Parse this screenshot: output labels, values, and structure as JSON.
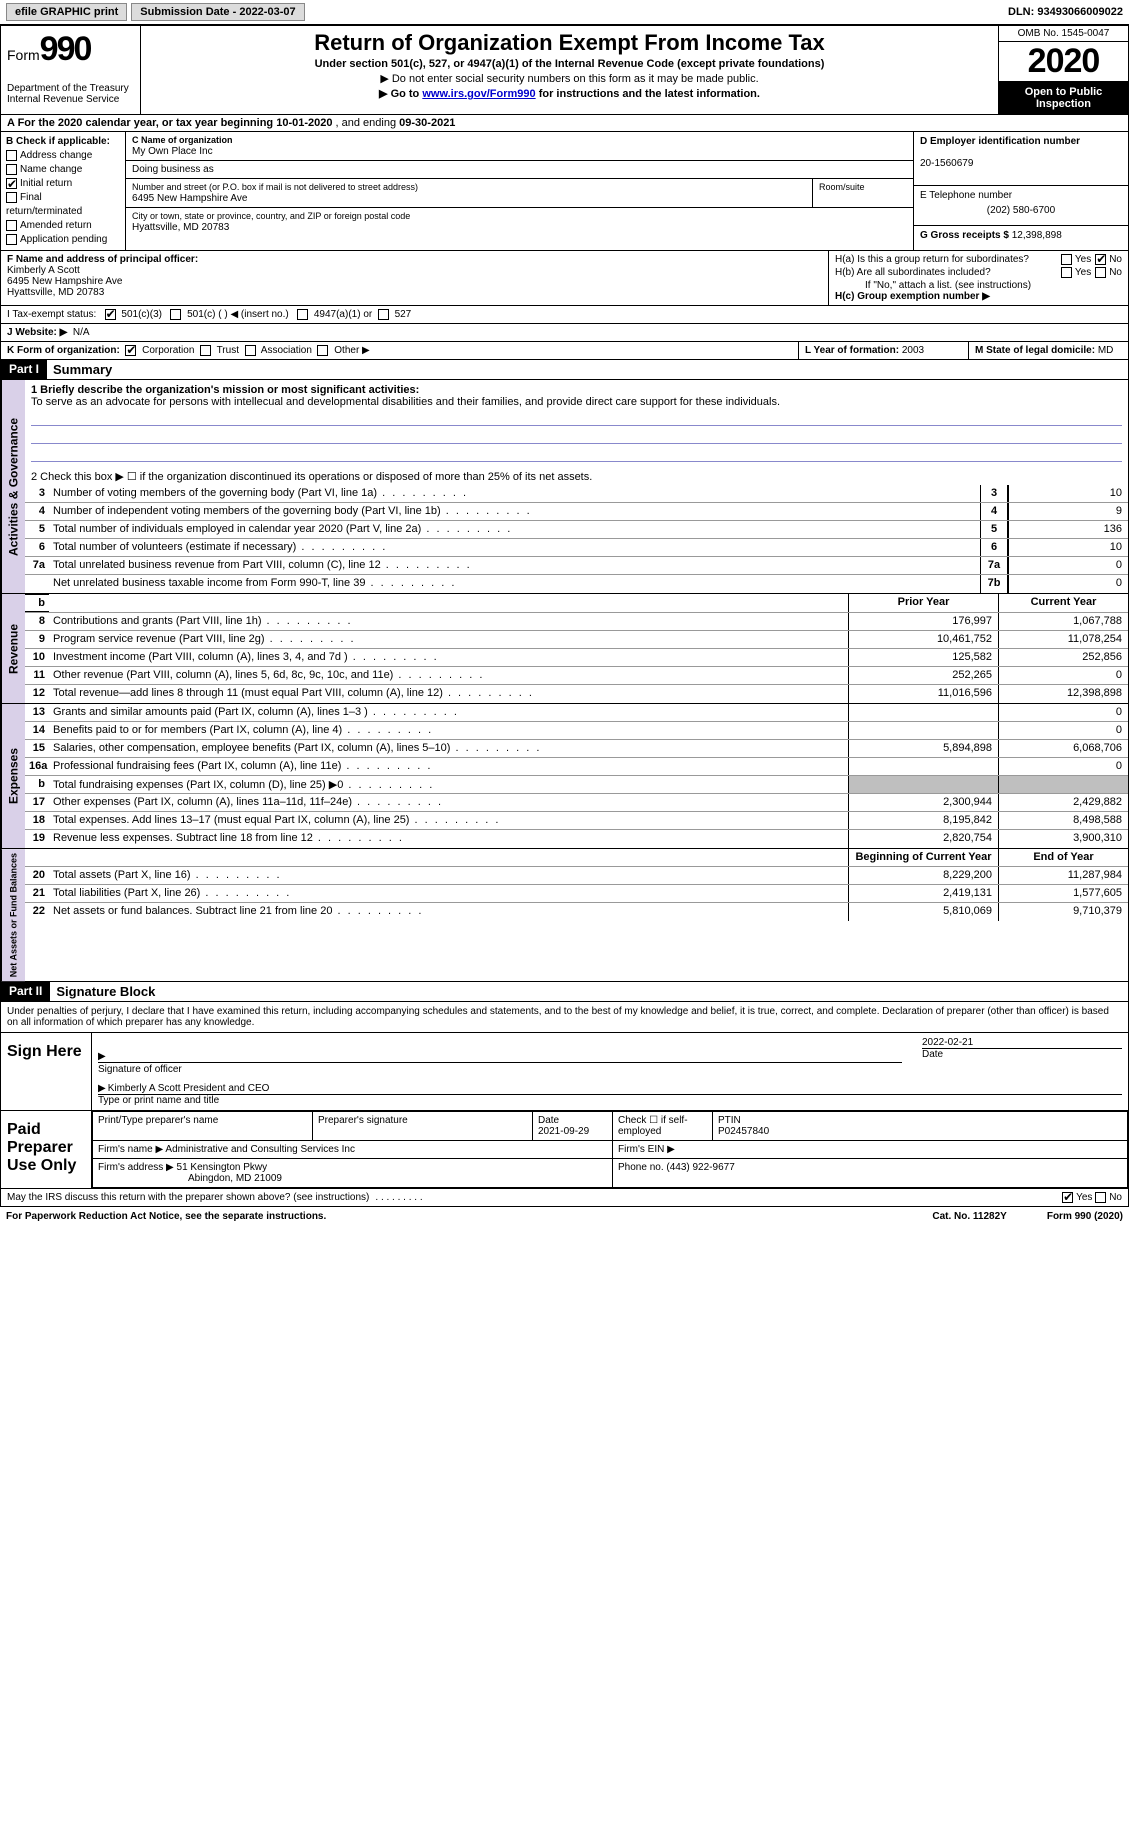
{
  "topbar": {
    "efile": "efile GRAPHIC print",
    "sub_label": "Submission Date - ",
    "sub_date": "2022-03-07",
    "dln_label": "DLN: ",
    "dln": "93493066009022"
  },
  "header": {
    "form_prefix": "Form",
    "form_no": "990",
    "dept1": "Department of the Treasury",
    "dept2": "Internal Revenue Service",
    "title": "Return of Organization Exempt From Income Tax",
    "subtitle": "Under section 501(c), 527, or 4947(a)(1) of the Internal Revenue Code (except private foundations)",
    "note1": "▶ Do not enter social security numbers on this form as it may be made public.",
    "note2_pre": "▶ Go to ",
    "note2_link": "www.irs.gov/Form990",
    "note2_post": " for instructions and the latest information.",
    "omb": "OMB No. 1545-0047",
    "year": "2020",
    "inspect": "Open to Public Inspection"
  },
  "lineA": {
    "text_pre": "A For the 2020 calendar year, or tax year beginning ",
    "begin": "10-01-2020",
    "mid": "  , and ending ",
    "end": "09-30-2021"
  },
  "colB": {
    "label": "B Check if applicable:",
    "items": [
      "Address change",
      "Name change",
      "Initial return",
      "Final return/terminated",
      "Amended return",
      "Application pending"
    ],
    "checked_index": 2
  },
  "colC": {
    "name_lbl": "C Name of organization",
    "name": "My Own Place Inc",
    "dba_lbl": "Doing business as",
    "dba": "",
    "addr_lbl": "Number and street (or P.O. box if mail is not delivered to street address)",
    "addr": "6495 New Hampshire Ave",
    "room_lbl": "Room/suite",
    "city_lbl": "City or town, state or province, country, and ZIP or foreign postal code",
    "city": "Hyattsville, MD  20783"
  },
  "colD": {
    "ein_lbl": "D Employer identification number",
    "ein": "20-1560679",
    "phone_lbl": "E Telephone number",
    "phone": "(202) 580-6700",
    "gross_lbl": "G Gross receipts $ ",
    "gross": "12,398,898"
  },
  "blockF": {
    "label": "F  Name and address of principal officer:",
    "name": "Kimberly A Scott",
    "addr1": "6495 New Hampshire Ave",
    "addr2": "Hyattsville, MD  20783"
  },
  "blockH": {
    "ha_lbl": "H(a)  Is this a group return for subordinates?",
    "ha_yes": "Yes",
    "ha_no": "No",
    "hb_lbl": "H(b)  Are all subordinates included?",
    "hb_yes": "Yes",
    "hb_no": "No",
    "hb_note": "If \"No,\" attach a list. (see instructions)",
    "hc_lbl": "H(c)  Group exemption number ▶"
  },
  "lineI": {
    "label": "I    Tax-exempt status:",
    "o1": "501(c)(3)",
    "o2": "501(c) (  ) ◀ (insert no.)",
    "o3": "4947(a)(1) or",
    "o4": "527"
  },
  "lineJ": {
    "label": "J   Website: ▶",
    "val": "N/A"
  },
  "lineK": {
    "label": "K Form of organization:",
    "o1": "Corporation",
    "o2": "Trust",
    "o3": "Association",
    "o4": "Other ▶"
  },
  "lineL": {
    "label": "L Year of formation: ",
    "val": "2003"
  },
  "lineM": {
    "label": "M State of legal domicile: ",
    "val": "MD"
  },
  "part1": {
    "tag": "Part I",
    "title": "Summary"
  },
  "summary": {
    "mission_lbl": "1  Briefly describe the organization's mission or most significant activities:",
    "mission": "To serve as an advocate for persons with intellecual and developmental disabilities and their families, and provide direct care support for these individuals.",
    "line2": "2    Check this box ▶ ☐  if the organization discontinued its operations or disposed of more than 25% of its net assets.",
    "rows_gov": [
      {
        "n": "3",
        "d": "Number of voting members of the governing body (Part VI, line 1a)",
        "b": "3",
        "v": "10"
      },
      {
        "n": "4",
        "d": "Number of independent voting members of the governing body (Part VI, line 1b)",
        "b": "4",
        "v": "9"
      },
      {
        "n": "5",
        "d": "Total number of individuals employed in calendar year 2020 (Part V, line 2a)",
        "b": "5",
        "v": "136"
      },
      {
        "n": "6",
        "d": "Total number of volunteers (estimate if necessary)",
        "b": "6",
        "v": "10"
      },
      {
        "n": "7a",
        "d": "Total unrelated business revenue from Part VIII, column (C), line 12",
        "b": "7a",
        "v": "0"
      },
      {
        "n": "",
        "d": "Net unrelated business taxable income from Form 990-T, line 39",
        "b": "7b",
        "v": "0"
      }
    ],
    "prior_hdr": "Prior Year",
    "cur_hdr": "Current Year",
    "rows_rev": [
      {
        "n": "8",
        "d": "Contributions and grants (Part VIII, line 1h)",
        "p": "176,997",
        "c": "1,067,788"
      },
      {
        "n": "9",
        "d": "Program service revenue (Part VIII, line 2g)",
        "p": "10,461,752",
        "c": "11,078,254"
      },
      {
        "n": "10",
        "d": "Investment income (Part VIII, column (A), lines 3, 4, and 7d )",
        "p": "125,582",
        "c": "252,856"
      },
      {
        "n": "11",
        "d": "Other revenue (Part VIII, column (A), lines 5, 6d, 8c, 9c, 10c, and 11e)",
        "p": "252,265",
        "c": "0"
      },
      {
        "n": "12",
        "d": "Total revenue—add lines 8 through 11 (must equal Part VIII, column (A), line 12)",
        "p": "11,016,596",
        "c": "12,398,898"
      }
    ],
    "rows_exp": [
      {
        "n": "13",
        "d": "Grants and similar amounts paid (Part IX, column (A), lines 1–3 )",
        "p": "",
        "c": "0"
      },
      {
        "n": "14",
        "d": "Benefits paid to or for members (Part IX, column (A), line 4)",
        "p": "",
        "c": "0"
      },
      {
        "n": "15",
        "d": "Salaries, other compensation, employee benefits (Part IX, column (A), lines 5–10)",
        "p": "5,894,898",
        "c": "6,068,706"
      },
      {
        "n": "16a",
        "d": "Professional fundraising fees (Part IX, column (A), line 11e)",
        "p": "",
        "c": "0"
      },
      {
        "n": "b",
        "d": "Total fundraising expenses (Part IX, column (D), line 25) ▶0",
        "p": "GREY",
        "c": "GREY"
      },
      {
        "n": "17",
        "d": "Other expenses (Part IX, column (A), lines 11a–11d, 11f–24e)",
        "p": "2,300,944",
        "c": "2,429,882"
      },
      {
        "n": "18",
        "d": "Total expenses. Add lines 13–17 (must equal Part IX, column (A), line 25)",
        "p": "8,195,842",
        "c": "8,498,588"
      },
      {
        "n": "19",
        "d": "Revenue less expenses. Subtract line 18 from line 12",
        "p": "2,820,754",
        "c": "3,900,310"
      }
    ],
    "begin_hdr": "Beginning of Current Year",
    "end_hdr": "End of Year",
    "rows_net": [
      {
        "n": "20",
        "d": "Total assets (Part X, line 16)",
        "p": "8,229,200",
        "c": "11,287,984"
      },
      {
        "n": "21",
        "d": "Total liabilities (Part X, line 26)",
        "p": "2,419,131",
        "c": "1,577,605"
      },
      {
        "n": "22",
        "d": "Net assets or fund balances. Subtract line 21 from line 20",
        "p": "5,810,069",
        "c": "9,710,379"
      }
    ],
    "vtabs": {
      "gov": "Activities & Governance",
      "rev": "Revenue",
      "exp": "Expenses",
      "net": "Net Assets or Fund Balances"
    }
  },
  "part2": {
    "tag": "Part II",
    "title": "Signature Block"
  },
  "sig": {
    "decl": "Under penalties of perjury, I declare that I have examined this return, including accompanying schedules and statements, and to the best of my knowledge and belief, it is true, correct, and complete. Declaration of preparer (other than officer) is based on all information of which preparer has any knowledge.",
    "sign_here": "Sign Here",
    "sig_off_lbl": "Signature of officer",
    "date_lbl": "Date",
    "date_val": "2022-02-21",
    "name_title": "Kimberly A Scott  President and CEO",
    "name_title_lbl": "Type or print name and title",
    "paid": "Paid Preparer Use Only",
    "prep_name_lbl": "Print/Type preparer's name",
    "prep_sig_lbl": "Preparer's signature",
    "prep_date_lbl": "Date",
    "prep_date": "2021-09-29",
    "check_lbl": "Check ☐ if self-employed",
    "ptin_lbl": "PTIN",
    "ptin": "P02457840",
    "firm_name_lbl": "Firm's name    ▶",
    "firm_name": "Administrative and Consulting Services Inc",
    "firm_ein_lbl": "Firm's EIN ▶",
    "firm_addr_lbl": "Firm's address ▶",
    "firm_addr1": "51 Kensington Pkwy",
    "firm_addr2": "Abingdon, MD  21009",
    "firm_phone_lbl": "Phone no. ",
    "firm_phone": "(443) 922-9677"
  },
  "footer": {
    "discuss": "May the IRS discuss this return with the preparer shown above? (see instructions)",
    "yes": "Yes",
    "no": "No",
    "pra": "For Paperwork Reduction Act Notice, see the separate instructions.",
    "cat": "Cat. No. 11282Y",
    "form": "Form 990 (2020)"
  },
  "colors": {
    "vtab_bg": "#d9d0e8",
    "btn_bg": "#dcdcdc",
    "link": "#0000cc",
    "grey_cell": "#bfbfbf"
  }
}
